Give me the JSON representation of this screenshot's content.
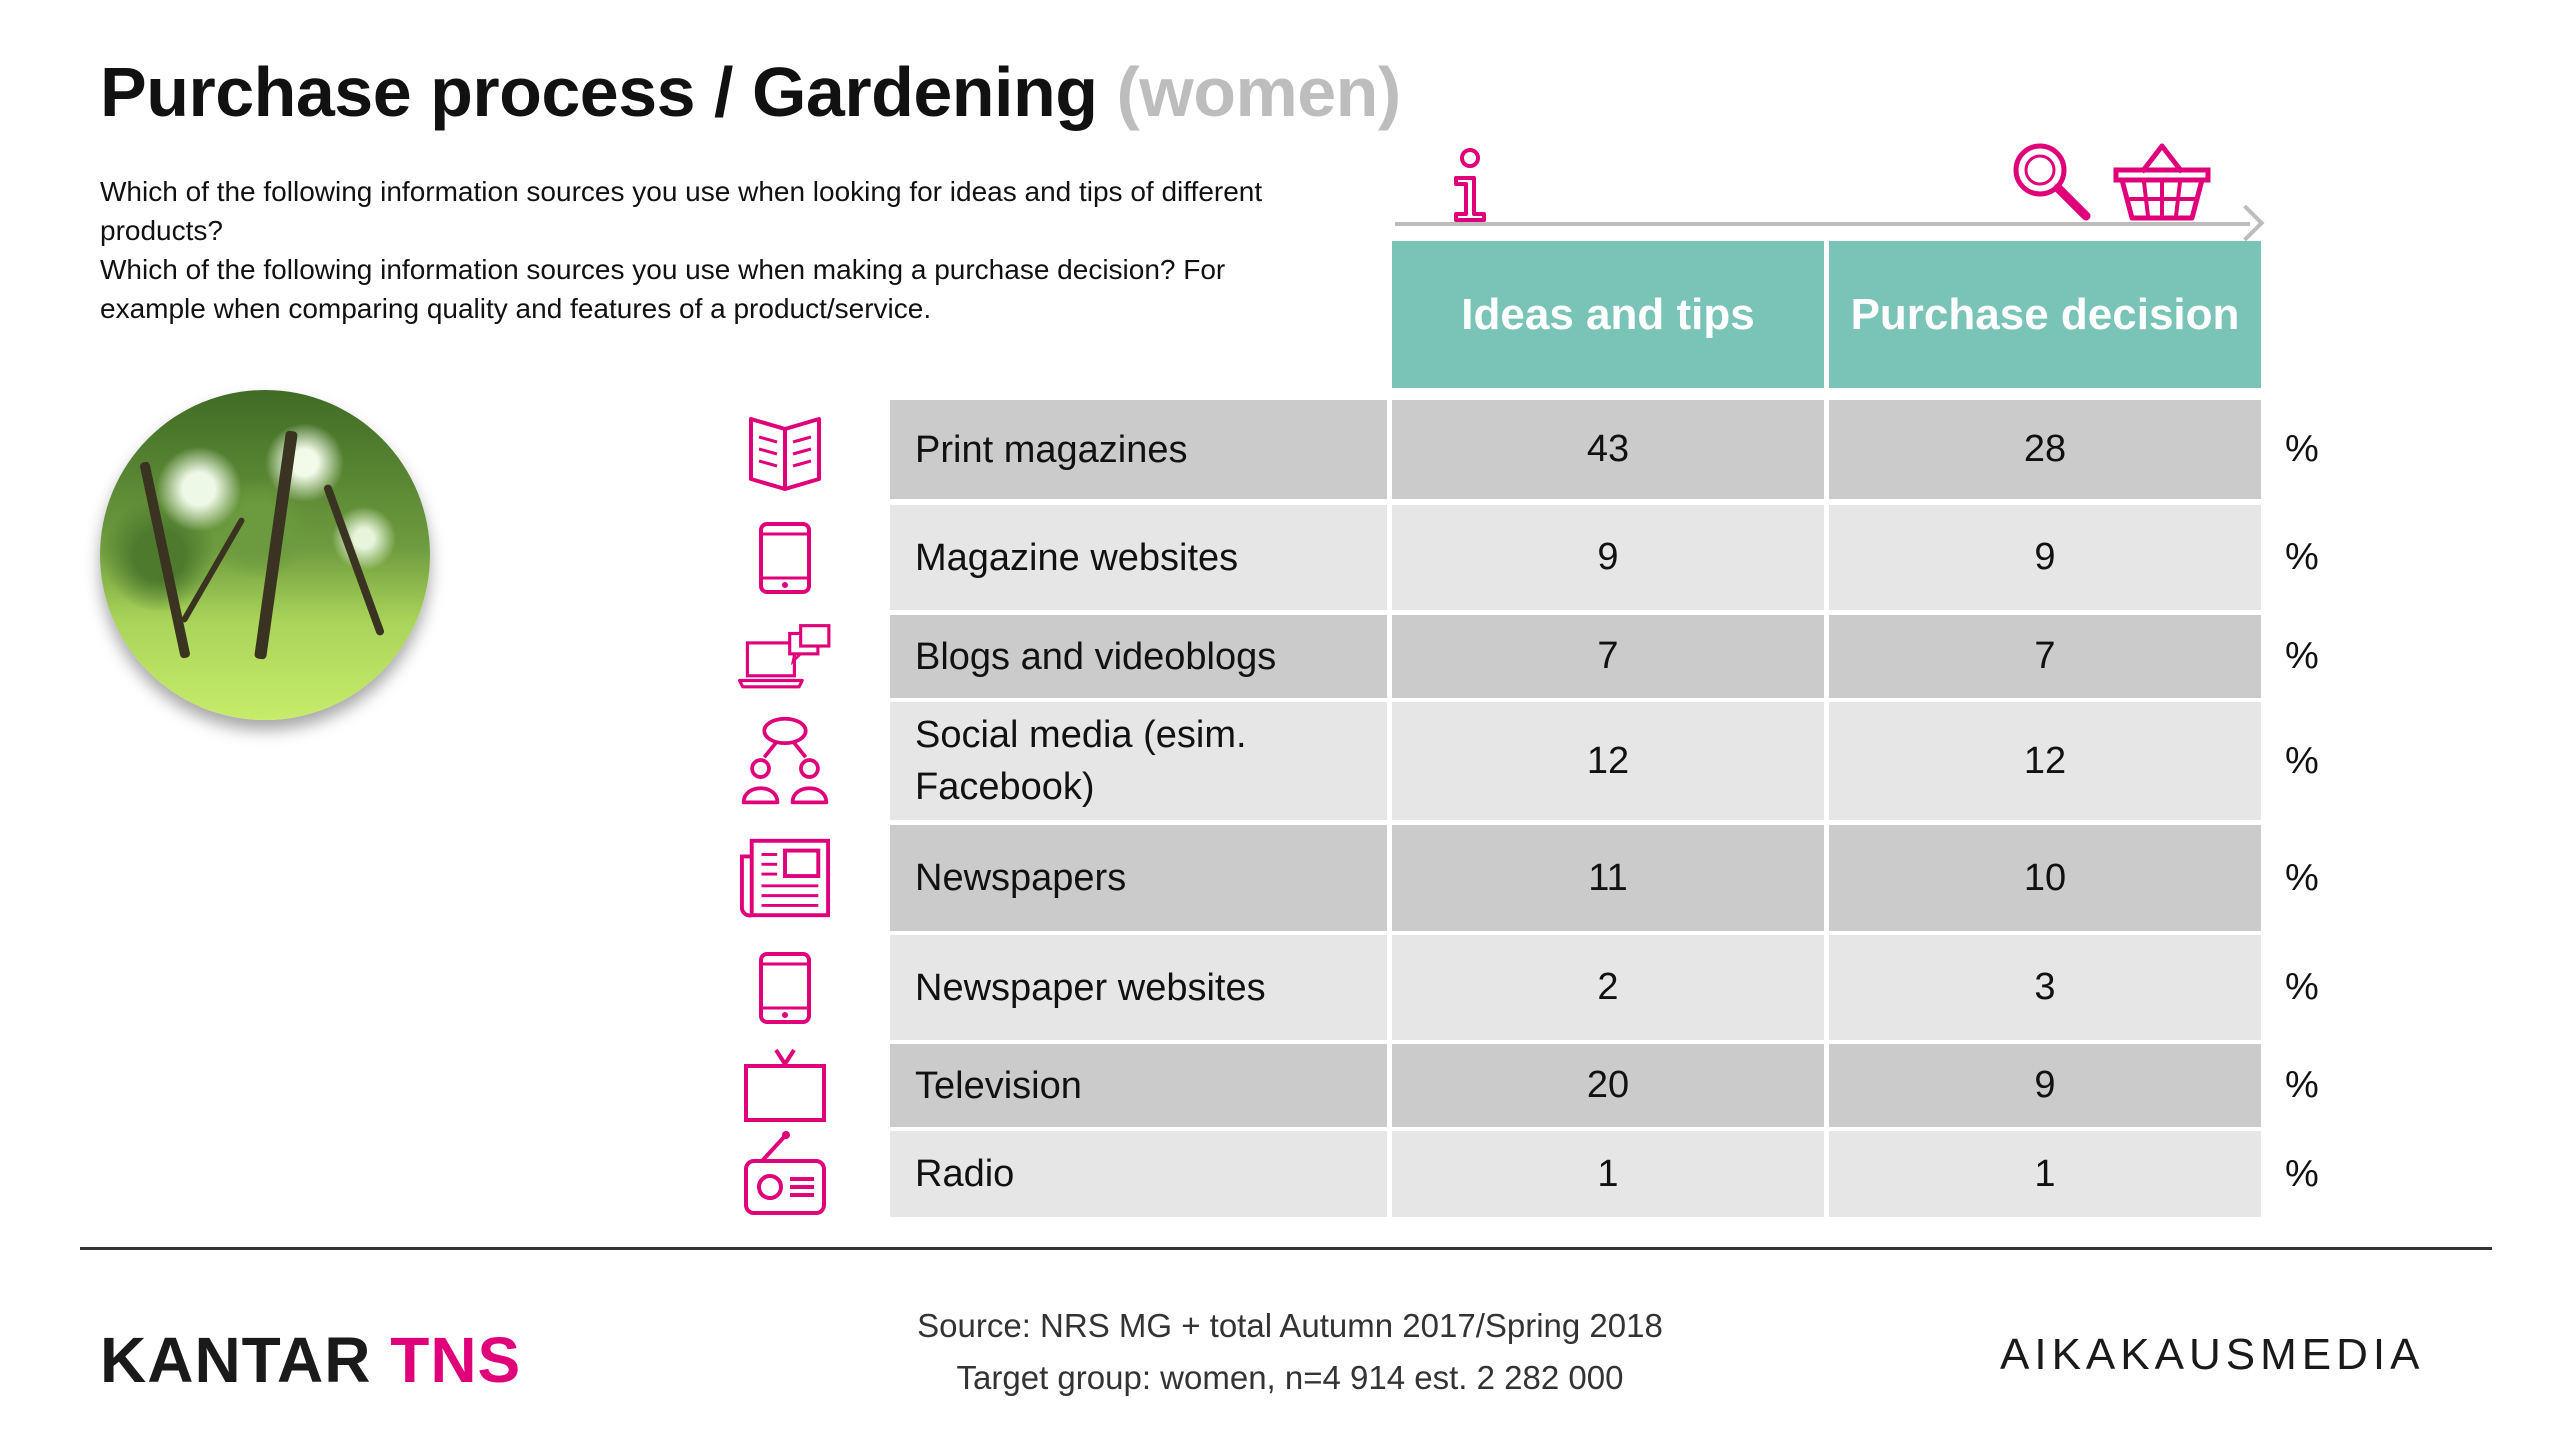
{
  "title": {
    "main": "Purchase process / Gardening",
    "sub": "(women)"
  },
  "questions": [
    "Which of the following information sources you use when looking for ideas and tips of different products?",
    "Which of the following information sources you use when making a purchase decision? For example when comparing quality and features of a product/service."
  ],
  "process_icons": [
    "info-icon",
    "magnifier-icon",
    "shopping-basket-icon"
  ],
  "columns": [
    "Ideas and tips",
    "Purchase decision"
  ],
  "unit": "%",
  "rows": [
    {
      "icon": "magazine-icon",
      "label": "Print magazines",
      "ideas": "43",
      "purchase": "28"
    },
    {
      "icon": "tablet-icon",
      "label": "Magazine websites",
      "ideas": "9",
      "purchase": "9"
    },
    {
      "icon": "laptop-chat-icon",
      "label": "Blogs and videoblogs",
      "ideas": "7",
      "purchase": "7"
    },
    {
      "icon": "people-network-icon",
      "label": "Social media (esim. Facebook)",
      "ideas": "12",
      "purchase": "12"
    },
    {
      "icon": "newspaper-icon",
      "label": "Newspapers",
      "ideas": "11",
      "purchase": "10"
    },
    {
      "icon": "tablet-icon",
      "label": "Newspaper websites",
      "ideas": "2",
      "purchase": "3"
    },
    {
      "icon": "television-icon",
      "label": "Television",
      "ideas": "20",
      "purchase": "9"
    },
    {
      "icon": "radio-icon",
      "label": "Radio",
      "ideas": "1",
      "purchase": "1"
    }
  ],
  "footer": {
    "source": "Source: NRS MG + total Autumn 2017/Spring 2018",
    "target": "Target group: women, n=4 914 est. 2 282 000",
    "logo_left_a": "KANTAR",
    "logo_left_b": "TNS",
    "logo_right": "AIKAKAUSMEDIA"
  },
  "colors": {
    "accent": "#e0007a",
    "header": "#79c4b6",
    "row_dark": "#cbcbcb",
    "row_light": "#e6e6e6"
  }
}
